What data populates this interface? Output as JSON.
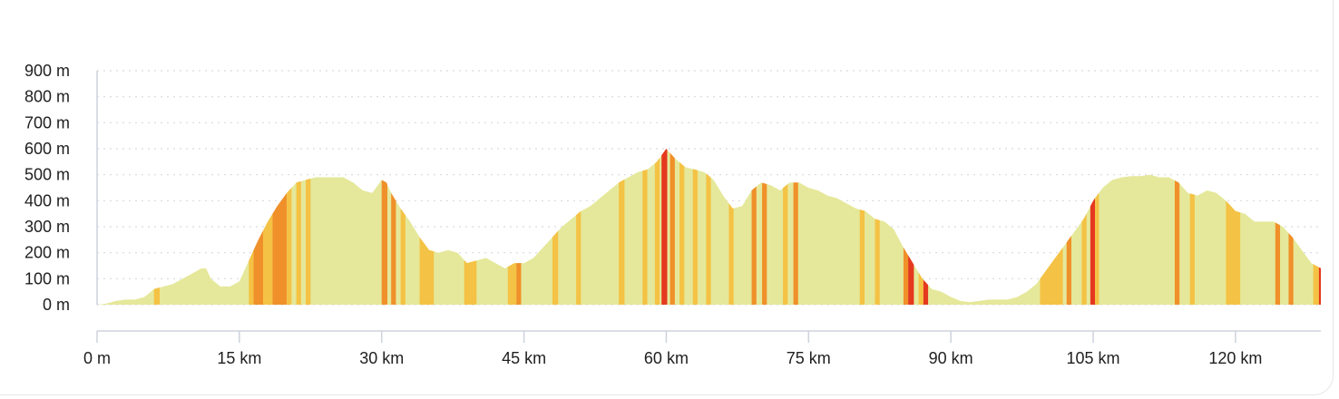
{
  "chart_data": {
    "type": "area",
    "title": "",
    "xlabel": "",
    "ylabel": "",
    "x_unit": "km",
    "y_unit": "m",
    "xlim": [
      0,
      129
    ],
    "ylim": [
      0,
      900
    ],
    "grid": "horizontal-dotted",
    "legend": "none",
    "y_ticks": [
      {
        "value": 0,
        "label": "0 m"
      },
      {
        "value": 100,
        "label": "100 m"
      },
      {
        "value": 200,
        "label": "200 m"
      },
      {
        "value": 300,
        "label": "300 m"
      },
      {
        "value": 400,
        "label": "400 m"
      },
      {
        "value": 500,
        "label": "500 m"
      },
      {
        "value": 600,
        "label": "600 m"
      },
      {
        "value": 700,
        "label": "700 m"
      },
      {
        "value": 800,
        "label": "800 m"
      },
      {
        "value": 900,
        "label": "900 m"
      }
    ],
    "x_ticks": [
      {
        "value": 0,
        "label": "0 m"
      },
      {
        "value": 15,
        "label": "15 km"
      },
      {
        "value": 30,
        "label": "30 km"
      },
      {
        "value": 45,
        "label": "45 km"
      },
      {
        "value": 60,
        "label": "60 km"
      },
      {
        "value": 75,
        "label": "75 km"
      },
      {
        "value": 90,
        "label": "90 km"
      },
      {
        "value": 105,
        "label": "105 km"
      },
      {
        "value": 120,
        "label": "120 km"
      }
    ],
    "colors": {
      "flat": "#e5e89a",
      "moderate": "#f4c244",
      "steep": "#f0902a",
      "very_steep": "#e5391f",
      "grid": "#d6d9e0",
      "axis": "#cdd2dc"
    },
    "profile": {
      "x": [
        0,
        1,
        2,
        3,
        4,
        5,
        6,
        7,
        8,
        9,
        10,
        11,
        11.5,
        12,
        13,
        14,
        15,
        16,
        17,
        18,
        19,
        20,
        21,
        22,
        23,
        24,
        25,
        26,
        27,
        28,
        29,
        30,
        30.5,
        31,
        32,
        33,
        34,
        35,
        36,
        37,
        38,
        39,
        40,
        41,
        42,
        43,
        44,
        45,
        46,
        47,
        48,
        49,
        50,
        51,
        52,
        53,
        54,
        55,
        56,
        57,
        58,
        59,
        60,
        61,
        62,
        63,
        64,
        65,
        66,
        67,
        68,
        69,
        70,
        71,
        72,
        73,
        74,
        75,
        76,
        77,
        78,
        79,
        80,
        81,
        82,
        83,
        84,
        85,
        86,
        87,
        88,
        89,
        90,
        91,
        92,
        93,
        94,
        95,
        96,
        97,
        98,
        99,
        100,
        101,
        102,
        103,
        104,
        105,
        106,
        107,
        108,
        109,
        110,
        111,
        112,
        113,
        114,
        115,
        116,
        117,
        118,
        119,
        120,
        121,
        122,
        123,
        124,
        125,
        126,
        127,
        128,
        129
      ],
      "y": [
        0,
        5,
        15,
        20,
        20,
        30,
        60,
        70,
        80,
        100,
        120,
        140,
        140,
        100,
        70,
        70,
        90,
        170,
        250,
        320,
        380,
        430,
        470,
        480,
        490,
        490,
        490,
        490,
        470,
        440,
        430,
        480,
        470,
        430,
        370,
        320,
        260,
        210,
        200,
        210,
        200,
        160,
        170,
        180,
        160,
        140,
        160,
        160,
        180,
        220,
        260,
        300,
        330,
        360,
        380,
        410,
        440,
        470,
        490,
        510,
        520,
        550,
        600,
        560,
        530,
        520,
        510,
        480,
        420,
        370,
        380,
        440,
        470,
        460,
        440,
        470,
        470,
        450,
        440,
        420,
        410,
        390,
        370,
        360,
        330,
        320,
        290,
        220,
        160,
        100,
        60,
        50,
        30,
        15,
        10,
        15,
        20,
        20,
        20,
        30,
        50,
        80,
        130,
        180,
        230,
        280,
        330,
        400,
        450,
        480,
        490,
        495,
        495,
        500,
        490,
        490,
        470,
        430,
        420,
        440,
        430,
        400,
        360,
        350,
        320,
        320,
        320,
        300,
        260,
        210,
        160,
        140
      ]
    },
    "gradient_bands": [
      {
        "x0": 6.0,
        "x1": 6.6,
        "class": "moderate"
      },
      {
        "x0": 16.0,
        "x1": 16.5,
        "class": "moderate"
      },
      {
        "x0": 16.5,
        "x1": 17.5,
        "class": "steep"
      },
      {
        "x0": 17.5,
        "x1": 18.5,
        "class": "moderate"
      },
      {
        "x0": 18.5,
        "x1": 20.0,
        "class": "steep"
      },
      {
        "x0": 20.0,
        "x1": 20.5,
        "class": "moderate"
      },
      {
        "x0": 21.0,
        "x1": 21.5,
        "class": "moderate"
      },
      {
        "x0": 22.0,
        "x1": 22.5,
        "class": "moderate"
      },
      {
        "x0": 30.0,
        "x1": 30.6,
        "class": "steep"
      },
      {
        "x0": 31.0,
        "x1": 31.5,
        "class": "steep"
      },
      {
        "x0": 32.0,
        "x1": 32.5,
        "class": "moderate"
      },
      {
        "x0": 34.0,
        "x1": 35.5,
        "class": "moderate"
      },
      {
        "x0": 38.7,
        "x1": 40.0,
        "class": "moderate"
      },
      {
        "x0": 43.3,
        "x1": 44.2,
        "class": "moderate"
      },
      {
        "x0": 44.2,
        "x1": 44.7,
        "class": "steep"
      },
      {
        "x0": 48.0,
        "x1": 48.6,
        "class": "moderate"
      },
      {
        "x0": 50.5,
        "x1": 51.0,
        "class": "moderate"
      },
      {
        "x0": 55.0,
        "x1": 55.6,
        "class": "moderate"
      },
      {
        "x0": 57.5,
        "x1": 58.0,
        "class": "moderate"
      },
      {
        "x0": 58.8,
        "x1": 59.3,
        "class": "moderate"
      },
      {
        "x0": 59.5,
        "x1": 60.1,
        "class": "very_steep"
      },
      {
        "x0": 60.4,
        "x1": 60.9,
        "class": "steep"
      },
      {
        "x0": 61.4,
        "x1": 61.9,
        "class": "moderate"
      },
      {
        "x0": 62.8,
        "x1": 63.3,
        "class": "moderate"
      },
      {
        "x0": 64.2,
        "x1": 64.7,
        "class": "moderate"
      },
      {
        "x0": 66.6,
        "x1": 67.1,
        "class": "moderate"
      },
      {
        "x0": 69.0,
        "x1": 69.5,
        "class": "steep"
      },
      {
        "x0": 70.1,
        "x1": 70.6,
        "class": "steep"
      },
      {
        "x0": 72.3,
        "x1": 72.8,
        "class": "moderate"
      },
      {
        "x0": 73.4,
        "x1": 73.9,
        "class": "steep"
      },
      {
        "x0": 80.4,
        "x1": 80.9,
        "class": "moderate"
      },
      {
        "x0": 82.0,
        "x1": 82.5,
        "class": "moderate"
      },
      {
        "x0": 85.0,
        "x1": 85.5,
        "class": "steep"
      },
      {
        "x0": 85.5,
        "x1": 86.1,
        "class": "very_steep"
      },
      {
        "x0": 86.6,
        "x1": 87.1,
        "class": "moderate"
      },
      {
        "x0": 87.1,
        "x1": 87.6,
        "class": "very_steep"
      },
      {
        "x0": 99.4,
        "x1": 101.8,
        "class": "moderate"
      },
      {
        "x0": 102.2,
        "x1": 102.7,
        "class": "steep"
      },
      {
        "x0": 103.8,
        "x1": 104.3,
        "class": "moderate"
      },
      {
        "x0": 104.7,
        "x1": 105.2,
        "class": "very_steep"
      },
      {
        "x0": 105.2,
        "x1": 105.6,
        "class": "moderate"
      },
      {
        "x0": 113.6,
        "x1": 114.1,
        "class": "steep"
      },
      {
        "x0": 115.2,
        "x1": 115.7,
        "class": "moderate"
      },
      {
        "x0": 119.0,
        "x1": 120.5,
        "class": "moderate"
      },
      {
        "x0": 124.2,
        "x1": 124.7,
        "class": "steep"
      },
      {
        "x0": 125.6,
        "x1": 126.1,
        "class": "steep"
      },
      {
        "x0": 128.2,
        "x1": 129.0,
        "class": "moderate"
      },
      {
        "x0": 128.8,
        "x1": 129.0,
        "class": "very_steep"
      }
    ]
  }
}
